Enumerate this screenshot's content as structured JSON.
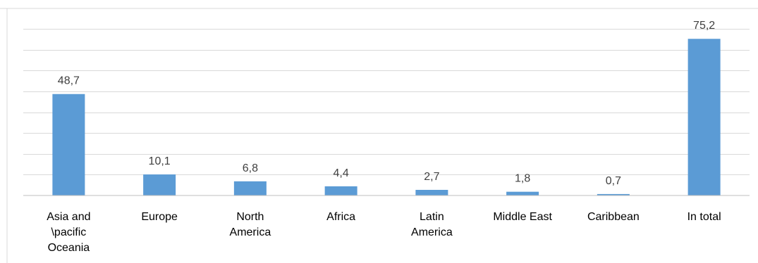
{
  "chart_data": {
    "type": "bar",
    "categories": [
      [
        "Asia and",
        "\\pacific",
        "Oceania"
      ],
      [
        "Europe"
      ],
      [
        "North",
        "America"
      ],
      [
        "Africa"
      ],
      [
        "Latin",
        "America"
      ],
      [
        "Middle East"
      ],
      [
        "Caribbean"
      ],
      [
        "In total"
      ]
    ],
    "values": [
      48.7,
      10.1,
      6.8,
      4.4,
      2.7,
      1.8,
      0.7,
      75.2
    ],
    "value_labels": [
      "48,7",
      "10,1",
      "6,8",
      "4,4",
      "2,7",
      "1,8",
      "0,7",
      "75,2"
    ],
    "ylim": [
      0,
      80
    ],
    "gridline_step": 10,
    "grid": true,
    "legend": "none",
    "bar_color": "#5b9bd5",
    "title": "",
    "xlabel": "",
    "ylabel": ""
  }
}
